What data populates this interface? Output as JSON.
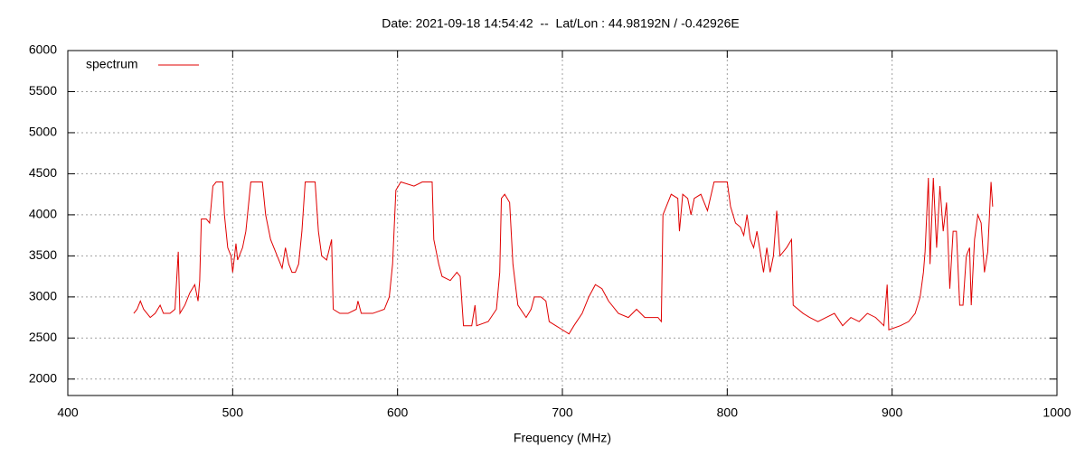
{
  "chart_data": {
    "type": "line",
    "title": "Date: 2021-09-18 14:54:42  --  Lat/Lon : 44.98192N / -0.42926E",
    "x_label": "Frequency (MHz)",
    "xlim": [
      400,
      1000
    ],
    "xticks": [
      400,
      500,
      600,
      700,
      800,
      900,
      1000
    ],
    "ylim": [
      1800,
      6000
    ],
    "yticks": [
      2000,
      2500,
      3000,
      3500,
      4000,
      4500,
      5000,
      5500,
      6000
    ],
    "grid": true,
    "legend": "top-left",
    "x": [
      440,
      442,
      444,
      446,
      450,
      453,
      456,
      458,
      462,
      465,
      467,
      468,
      471,
      474,
      477,
      479,
      480,
      481,
      484,
      486,
      488,
      490,
      494,
      495,
      497,
      499,
      500,
      502,
      503,
      506,
      508,
      510,
      511,
      518,
      520,
      523,
      526,
      528,
      530,
      532,
      534,
      536,
      538,
      540,
      542,
      544,
      550,
      552,
      554,
      557,
      560,
      561,
      565,
      570,
      575,
      576,
      578,
      585,
      592,
      595,
      597,
      599,
      602,
      610,
      615,
      621,
      622,
      625,
      627,
      632,
      636,
      638,
      640,
      645,
      647,
      648,
      655,
      660,
      662,
      663,
      665,
      668,
      670,
      673,
      678,
      681,
      683,
      687,
      690,
      692,
      696,
      700,
      704,
      707,
      712,
      716,
      720,
      724,
      728,
      734,
      740,
      745,
      750,
      755,
      758,
      760,
      761,
      763,
      766,
      770,
      771,
      773,
      776,
      778,
      780,
      784,
      788,
      792,
      800,
      802,
      805,
      808,
      810,
      812,
      814,
      816,
      818,
      820,
      822,
      824,
      826,
      828,
      830,
      832,
      836,
      839,
      840,
      843,
      846,
      850,
      855,
      860,
      865,
      870,
      875,
      880,
      885,
      890,
      895,
      897,
      898,
      905,
      910,
      914,
      917,
      919,
      920,
      922,
      923,
      925,
      927,
      929,
      931,
      933,
      935,
      937,
      939,
      941,
      943,
      945,
      947,
      948,
      950,
      952,
      954,
      956,
      958,
      960,
      961
    ],
    "series": [
      {
        "name": "spectrum",
        "color": "#e00000",
        "values": [
          2800,
          2850,
          2950,
          2850,
          2750,
          2800,
          2900,
          2800,
          2800,
          2850,
          3550,
          2800,
          2900,
          3050,
          3150,
          2950,
          3200,
          3950,
          3950,
          3900,
          4350,
          4400,
          4400,
          4000,
          3600,
          3500,
          3300,
          3650,
          3450,
          3600,
          3800,
          4200,
          4400,
          4400,
          4000,
          3700,
          3550,
          3450,
          3350,
          3600,
          3400,
          3300,
          3300,
          3400,
          3800,
          4400,
          4400,
          3800,
          3500,
          3450,
          3700,
          2850,
          2800,
          2800,
          2850,
          2950,
          2800,
          2800,
          2850,
          3000,
          3400,
          4300,
          4400,
          4350,
          4400,
          4400,
          3700,
          3400,
          3250,
          3200,
          3300,
          3250,
          2650,
          2650,
          2900,
          2650,
          2700,
          2850,
          3300,
          4200,
          4250,
          4150,
          3400,
          2900,
          2750,
          2850,
          3000,
          3000,
          2950,
          2700,
          2650,
          2600,
          2550,
          2650,
          2800,
          3000,
          3150,
          3100,
          2950,
          2800,
          2750,
          2850,
          2750,
          2750,
          2750,
          2700,
          4000,
          4100,
          4250,
          4200,
          3800,
          4250,
          4200,
          4000,
          4200,
          4250,
          4050,
          4400,
          4400,
          4100,
          3900,
          3850,
          3750,
          4000,
          3700,
          3600,
          3800,
          3550,
          3300,
          3600,
          3300,
          3500,
          4050,
          3500,
          3600,
          3700,
          2900,
          2850,
          2800,
          2750,
          2700,
          2750,
          2800,
          2650,
          2750,
          2700,
          2800,
          2750,
          2650,
          3150,
          2600,
          2650,
          2700,
          2800,
          3000,
          3300,
          3550,
          4450,
          3400,
          4450,
          3600,
          4350,
          3800,
          4150,
          3100,
          3800,
          3800,
          2900,
          2900,
          3500,
          3600,
          2900,
          3700,
          4000,
          3900,
          3300,
          3550,
          4400,
          4100
        ]
      }
    ]
  }
}
